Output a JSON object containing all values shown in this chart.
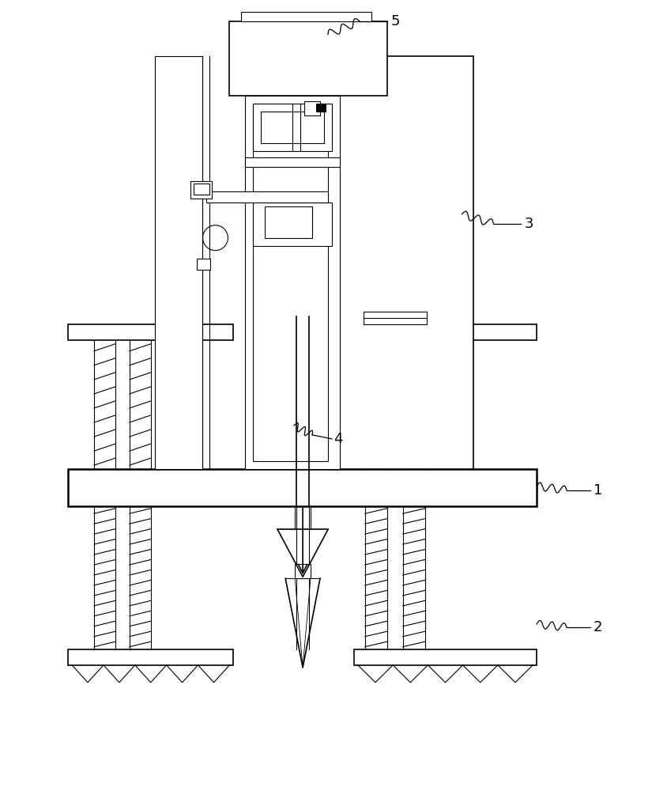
{
  "bg_color": "#ffffff",
  "lw_thin": 0.8,
  "lw_med": 1.2,
  "lw_thick": 1.8,
  "fig_w": 8.25,
  "fig_h": 10.0,
  "label_fontsize": 13
}
